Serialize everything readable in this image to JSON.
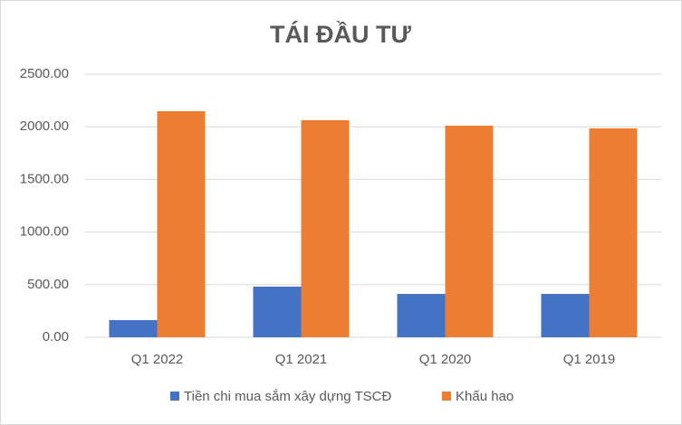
{
  "chart_data": {
    "type": "bar",
    "title": "TÁI ĐẦU TƯ",
    "categories": [
      "Q1 2022",
      "Q1 2021",
      "Q1 2020",
      "Q1 2019"
    ],
    "series": [
      {
        "name": "Tiền chi mua sắm xây dựng TSCĐ",
        "color": "#4472c4",
        "values": [
          163,
          481,
          412,
          412
        ]
      },
      {
        "name": "Khấu hao",
        "color": "#ed7d31",
        "values": [
          2148,
          2062,
          2010,
          1985
        ]
      }
    ],
    "ylim": [
      0,
      2500
    ],
    "yticks": [
      {
        "value": 0,
        "label": "0.00"
      },
      {
        "value": 500,
        "label": "500.00"
      },
      {
        "value": 1000,
        "label": "1000.00"
      },
      {
        "value": 1500,
        "label": "1500.00"
      },
      {
        "value": 2000,
        "label": "2000.00"
      },
      {
        "value": 2500,
        "label": "2500.00"
      }
    ],
    "grid": true,
    "legend": "bottom"
  }
}
